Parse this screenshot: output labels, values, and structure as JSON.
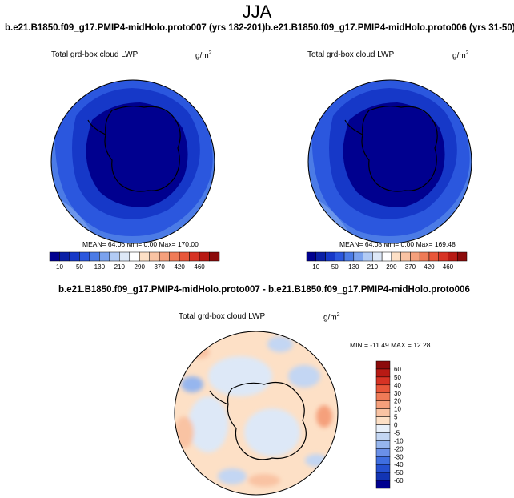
{
  "season": "JJA",
  "panels": [
    {
      "title": "b.e21.B1850.f09_g17.PMIP4-midHolo.proto007 (yrs 182-201)",
      "variable": "Total grd-box cloud LWP",
      "units": "g/m",
      "units_exp": "2",
      "stats": "MEAN= 64.06  Min=   0.00  Max= 170.00"
    },
    {
      "title": "b.e21.B1850.f09_g17.PMIP4-midHolo.proto006 (yrs 31-50)",
      "variable": "Total grd-box cloud LWP",
      "units": "g/m",
      "units_exp": "2",
      "stats": "MEAN= 64.08  Min=   0.00  Max= 169.48"
    },
    {
      "title": "b.e21.B1850.f09_g17.PMIP4-midHolo.proto007 - b.e21.B1850.f09_g17.PMIP4-midHolo.proto006",
      "variable": "Total grd-box cloud LWP",
      "units": "g/m",
      "units_exp": "2",
      "stats": "MIN = -11.49 MAX =  12.28"
    }
  ],
  "colorbar_top": {
    "labels": [
      "10",
      "50",
      "130",
      "210",
      "290",
      "370",
      "420",
      "460"
    ],
    "colors": [
      "#00008f",
      "#0a1fa6",
      "#1638c8",
      "#2b57de",
      "#4b7be6",
      "#7ba2ee",
      "#b2cbf4",
      "#dde8f7",
      "#ffffff",
      "#fde0c6",
      "#f9c3a3",
      "#f5a07c",
      "#ef7b57",
      "#e8573a",
      "#d73324",
      "#b81a14",
      "#8c0b0b"
    ]
  },
  "colorbar_diff": {
    "labels": [
      "60",
      "50",
      "40",
      "30",
      "20",
      "10",
      "5",
      "0",
      "-5",
      "-10",
      "-20",
      "-30",
      "-40",
      "-50",
      "-60"
    ],
    "colors": [
      "#8c0b0b",
      "#b81a14",
      "#d73324",
      "#e8573a",
      "#ef7b57",
      "#f5a07c",
      "#f9c3a3",
      "#fde0c6",
      "#e8f0fa",
      "#c3d6f3",
      "#96b6ee",
      "#6a90e8",
      "#3f6ee0",
      "#2550d0",
      "#1234b4",
      "#00008f"
    ]
  },
  "chart_data": [
    {
      "type": "heatmap",
      "title": "b.e21.B1850.f09_g17.PMIP4-midHolo.proto007 (yrs 182-201)",
      "variable": "Total grd-box cloud LWP",
      "units": "g/m2",
      "projection": "polar stereographic (south pole)",
      "stats": {
        "mean": 64.06,
        "min": 0.0,
        "max": 170.0
      },
      "contour_levels": [
        10,
        50,
        130,
        210,
        290,
        370,
        420,
        460
      ]
    },
    {
      "type": "heatmap",
      "title": "b.e21.B1850.f09_g17.PMIP4-midHolo.proto006 (yrs 31-50)",
      "variable": "Total grd-box cloud LWP",
      "units": "g/m2",
      "projection": "polar stereographic (south pole)",
      "stats": {
        "mean": 64.08,
        "min": 0.0,
        "max": 169.48
      },
      "contour_levels": [
        10,
        50,
        130,
        210,
        290,
        370,
        420,
        460
      ]
    },
    {
      "type": "heatmap",
      "title": "b.e21.B1850.f09_g17.PMIP4-midHolo.proto007 - b.e21.B1850.f09_g17.PMIP4-midHolo.proto006",
      "variable": "Total grd-box cloud LWP",
      "units": "g/m2",
      "projection": "polar stereographic (south pole)",
      "stats": {
        "min": -11.49,
        "max": 12.28
      },
      "contour_levels": [
        -60,
        -50,
        -40,
        -30,
        -20,
        -10,
        -5,
        0,
        5,
        10,
        20,
        30,
        40,
        50,
        60
      ]
    }
  ]
}
